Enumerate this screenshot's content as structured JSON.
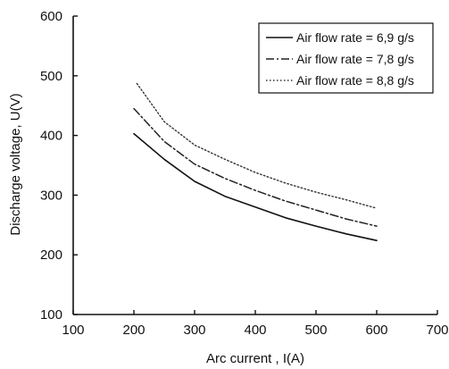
{
  "chart_data": {
    "type": "line",
    "title": "",
    "xlabel": "Arc current , I(A)",
    "ylabel": "Discharge voltage, U(V)",
    "xlim": [
      100,
      700
    ],
    "ylim": [
      100,
      600
    ],
    "xticks": [
      "100",
      "200",
      "300",
      "400",
      "500",
      "600",
      "700"
    ],
    "yticks": [
      "100",
      "200",
      "300",
      "400",
      "500",
      "600"
    ],
    "grid": false,
    "legend_position": "top-right",
    "series": [
      {
        "name": "Air flow rate = 6,9 g/s",
        "style": "solid",
        "color": "#111111",
        "x": [
          200,
          250,
          300,
          350,
          400,
          450,
          500,
          550,
          600
        ],
        "y": [
          403,
          360,
          323,
          298,
          280,
          262,
          248,
          235,
          224
        ]
      },
      {
        "name": "Air flow rate = 7,8 g/s",
        "style": "dashdot",
        "color": "#222222",
        "x": [
          200,
          250,
          300,
          350,
          400,
          450,
          500,
          550,
          600
        ],
        "y": [
          445,
          390,
          352,
          328,
          308,
          290,
          275,
          260,
          248
        ]
      },
      {
        "name": "Air flow rate = 8,8 g/s",
        "style": "dotted",
        "color": "#333333",
        "x": [
          205,
          250,
          300,
          350,
          400,
          450,
          500,
          550,
          600
        ],
        "y": [
          487,
          423,
          384,
          360,
          338,
          320,
          305,
          292,
          278
        ]
      }
    ]
  }
}
